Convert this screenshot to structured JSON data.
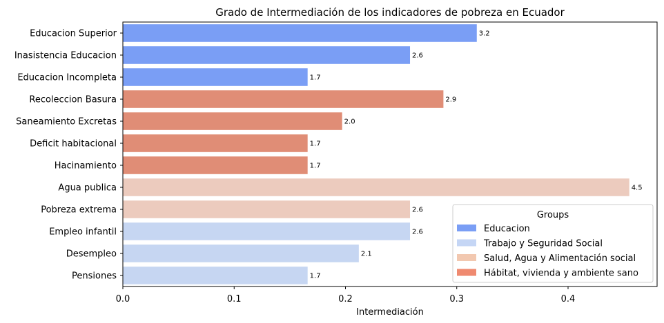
{
  "chart_data": {
    "type": "bar",
    "orientation": "horizontal",
    "title": "Grado de Intermediación de los indicadores de pobreza en Ecuador",
    "xlabel": "Intermediación",
    "ylabel": "",
    "xlim": [
      0,
      0.48
    ],
    "xticks": [
      "0.0",
      "0.1",
      "0.2",
      "0.3",
      "0.4"
    ],
    "grid": false,
    "legend_position": "lower-right",
    "legend_title": "Groups",
    "groups": [
      {
        "name": "Educacion",
        "color": "#7a9ef5",
        "legend_color": "#7a9ef5"
      },
      {
        "name": "Trabajo y Seguridad Social",
        "color": "#c6d6f2",
        "legend_color": "#c5d6f5"
      },
      {
        "name": "Salud, Agua y Alimentación social",
        "color": "#eccbbe",
        "legend_color": "#f2c8b0"
      },
      {
        "name": "Hábitat, vivienda y ambiente sano",
        "color": "#e08d76",
        "legend_color": "#ef8a70"
      }
    ],
    "bars": [
      {
        "category": "Educacion Superior",
        "value": 0.318,
        "label": "3.2",
        "group": 0
      },
      {
        "category": "Inasistencia Educacion",
        "value": 0.258,
        "label": "2.6",
        "group": 0
      },
      {
        "category": "Educacion Incompleta",
        "value": 0.166,
        "label": "1.7",
        "group": 0
      },
      {
        "category": "Recoleccion Basura",
        "value": 0.288,
        "label": "2.9",
        "group": 3
      },
      {
        "category": "Saneamiento Excretas",
        "value": 0.197,
        "label": "2.0",
        "group": 3
      },
      {
        "category": "Deficit habitacional",
        "value": 0.166,
        "label": "1.7",
        "group": 3
      },
      {
        "category": "Hacinamiento",
        "value": 0.166,
        "label": "1.7",
        "group": 3
      },
      {
        "category": "Agua publica",
        "value": 0.455,
        "label": "4.5",
        "group": 2
      },
      {
        "category": "Pobreza extrema",
        "value": 0.258,
        "label": "2.6",
        "group": 2
      },
      {
        "category": "Empleo infantil",
        "value": 0.258,
        "label": "2.6",
        "group": 1
      },
      {
        "category": "Desempleo",
        "value": 0.212,
        "label": "2.1",
        "group": 1
      },
      {
        "category": "Pensiones",
        "value": 0.166,
        "label": "1.7",
        "group": 1
      }
    ]
  }
}
